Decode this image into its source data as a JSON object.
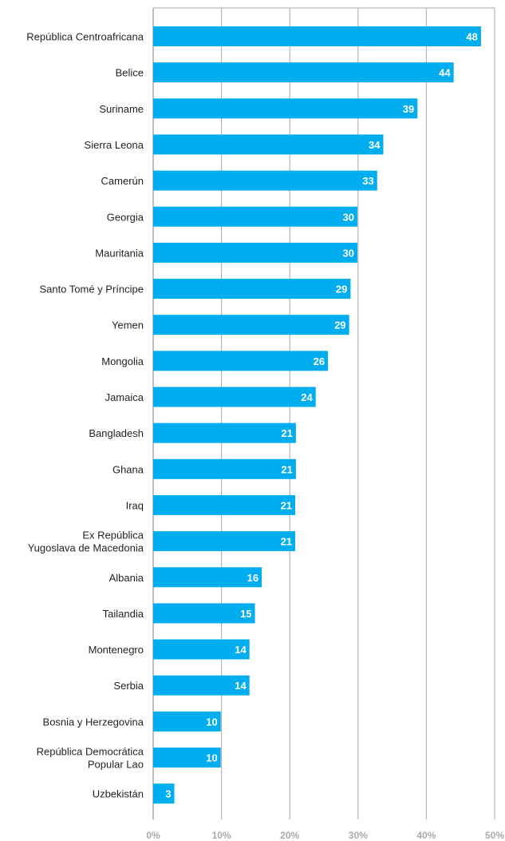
{
  "chart_data": {
    "type": "bar",
    "orientation": "horizontal",
    "categories": [
      "República Centroafricana",
      "Belice",
      "Suriname",
      "Sierra Leona",
      "Camerún",
      "Georgia",
      "Mauritania",
      "Santo Tomé y Príncipe",
      "Yemen",
      "Mongolia",
      "Jamaica",
      "Bangladesh",
      "Ghana",
      "Iraq",
      "Ex República\nYugoslava de Macedonia",
      "Albania",
      "Tailandia",
      "Montenegro",
      "Serbia",
      "Bosnia y Herzegovina",
      "República Democrática\nPopular Lao",
      "Uzbekistán"
    ],
    "values": [
      48,
      44,
      39,
      34,
      33,
      30,
      30,
      29,
      29,
      26,
      24,
      21,
      21,
      21,
      21,
      16,
      15,
      14,
      14,
      10,
      10,
      3
    ],
    "bar_lengths": [
      48,
      44,
      38.7,
      33.7,
      32.8,
      29.9,
      29.9,
      28.9,
      28.7,
      25.6,
      23.8,
      20.9,
      20.9,
      20.8,
      20.8,
      15.9,
      14.9,
      14.1,
      14.1,
      9.9,
      9.9,
      3.1
    ],
    "x_ticks": [
      "0%",
      "10%",
      "20%",
      "30%",
      "40%",
      "50%"
    ],
    "xlim": [
      0,
      50
    ],
    "grid": true,
    "colors": {
      "bar": "#00aeef",
      "value_text": "#ffffff",
      "tick_text": "#a7a9ac",
      "label_text": "#231f20",
      "grid": "#a7a9ac"
    }
  }
}
